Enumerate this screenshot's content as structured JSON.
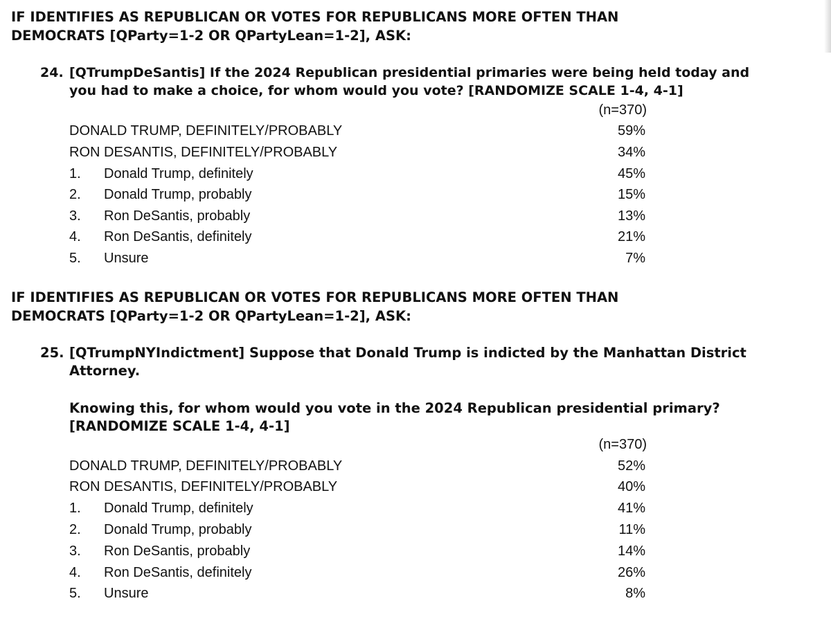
{
  "blocks": [
    {
      "header": [
        "IF IDENTIFIES AS REPUBLICAN OR VOTES FOR REPUBLICANS MORE OFTEN THAN",
        "DEMOCRATS [QParty=1-2 OR QPartyLean=1-2], ASK:"
      ],
      "question_number": "24.",
      "question_lines": [
        "[QTrumpDeSantis] If the 2024 Republican presidential primaries were being held today and",
        "you had to make a choice, for whom would you vote? [RANDOMIZE SCALE 1-4, 4-1]"
      ],
      "n_label": "(n=370)",
      "rows": [
        {
          "number": "",
          "label": "DONALD TRUMP, DEFINITELY/PROBABLY",
          "value": "59%"
        },
        {
          "number": "",
          "label": "RON DESANTIS, DEFINITELY/PROBABLY",
          "value": "34%"
        },
        {
          "number": "1.",
          "label": "Donald Trump, definitely",
          "value": "45%"
        },
        {
          "number": "2.",
          "label": "Donald Trump, probably",
          "value": "15%"
        },
        {
          "number": "3.",
          "label": "Ron DeSantis, probably",
          "value": "13%"
        },
        {
          "number": "4.",
          "label": "Ron DeSantis, definitely",
          "value": "21%"
        },
        {
          "number": "5.",
          "label": "Unsure",
          "value": "7%"
        }
      ]
    },
    {
      "header": [
        "IF IDENTIFIES AS REPUBLICAN OR VOTES FOR REPUBLICANS MORE OFTEN THAN",
        "DEMOCRATS [QParty=1-2 OR QPartyLean=1-2], ASK:"
      ],
      "question_number": "25.",
      "question_lines": [
        "[QTrumpNYIndictment] Suppose that Donald Trump is indicted by the Manhattan District",
        "Attorney."
      ],
      "question_followup": [
        "Knowing this, for whom would you vote in the 2024 Republican presidential primary?",
        "[RANDOMIZE SCALE 1-4, 4-1]"
      ],
      "n_label": "(n=370)",
      "rows": [
        {
          "number": "",
          "label": "DONALD TRUMP, DEFINITELY/PROBABLY",
          "value": "52%"
        },
        {
          "number": "",
          "label": "RON DESANTIS, DEFINITELY/PROBABLY",
          "value": "40%"
        },
        {
          "number": "1.",
          "label": "Donald Trump, definitely",
          "value": "41%"
        },
        {
          "number": "2.",
          "label": "Donald Trump, probably",
          "value": "11%"
        },
        {
          "number": "3.",
          "label": "Ron DeSantis, probably",
          "value": "14%"
        },
        {
          "number": "4.",
          "label": "Ron DeSantis, definitely",
          "value": "26%"
        },
        {
          "number": "5.",
          "label": "Unsure",
          "value": "8%"
        }
      ]
    }
  ]
}
